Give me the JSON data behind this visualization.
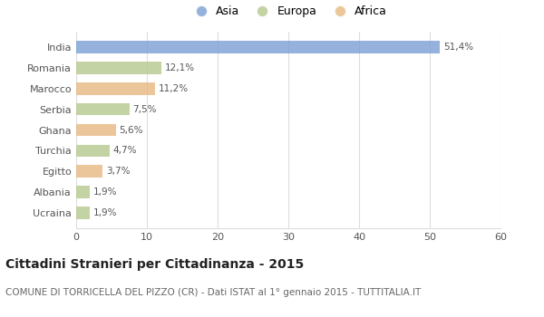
{
  "categories": [
    "India",
    "Romania",
    "Marocco",
    "Serbia",
    "Ghana",
    "Turchia",
    "Egitto",
    "Albania",
    "Ucraina"
  ],
  "values": [
    51.4,
    12.1,
    11.2,
    7.5,
    5.6,
    4.7,
    3.7,
    1.9,
    1.9
  ],
  "labels": [
    "51,4%",
    "12,1%",
    "11,2%",
    "7,5%",
    "5,6%",
    "4,7%",
    "3,7%",
    "1,9%",
    "1,9%"
  ],
  "colors": [
    "#7b9fd4",
    "#b5c98e",
    "#e8b882",
    "#b5c98e",
    "#e8b882",
    "#b5c98e",
    "#e8b882",
    "#b5c98e",
    "#b5c98e"
  ],
  "legend_labels": [
    "Asia",
    "Europa",
    "Africa"
  ],
  "legend_colors": [
    "#7b9fd4",
    "#b5c98e",
    "#e8b882"
  ],
  "xlim": [
    0,
    60
  ],
  "xticks": [
    0,
    10,
    20,
    30,
    40,
    50,
    60
  ],
  "title": "Cittadini Stranieri per Cittadinanza - 2015",
  "subtitle": "COMUNE DI TORRICELLA DEL PIZZO (CR) - Dati ISTAT al 1° gennaio 2015 - TUTTITALIA.IT",
  "title_fontsize": 10,
  "subtitle_fontsize": 7.5,
  "label_fontsize": 7.5,
  "tick_fontsize": 8,
  "bar_alpha": 0.8,
  "background_color": "#ffffff",
  "grid_color": "#dddddd"
}
